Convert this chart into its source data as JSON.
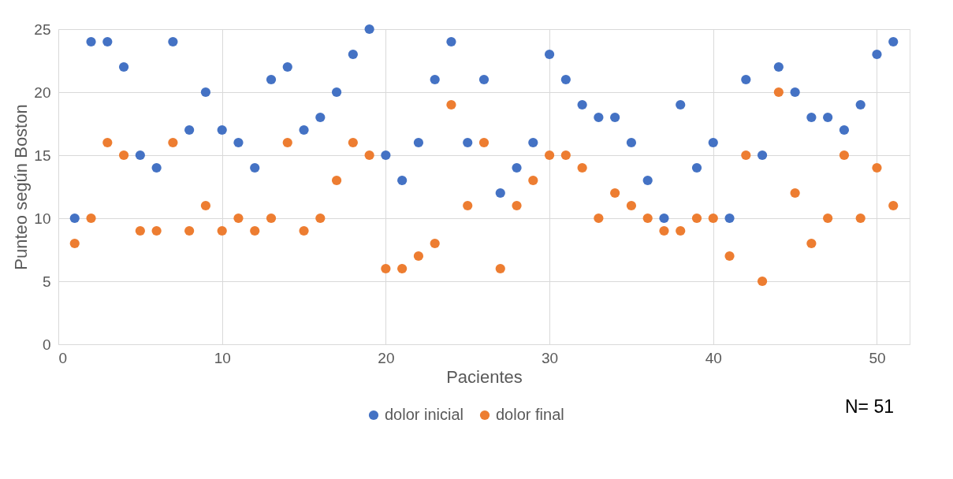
{
  "chart_data": {
    "type": "scatter",
    "xlabel": "Pacientes",
    "ylabel": "Punteo según Boston",
    "x": [
      1,
      2,
      3,
      4,
      5,
      6,
      7,
      8,
      9,
      10,
      11,
      12,
      13,
      14,
      15,
      16,
      17,
      18,
      19,
      20,
      21,
      22,
      23,
      24,
      25,
      26,
      27,
      28,
      29,
      30,
      31,
      32,
      33,
      34,
      35,
      36,
      37,
      38,
      39,
      40,
      41,
      42,
      43,
      44,
      45,
      46,
      47,
      48,
      49,
      50,
      51
    ],
    "series": [
      {
        "name": "dolor inicial",
        "color": "#4472c4",
        "values": [
          10,
          24,
          24,
          22,
          15,
          14,
          24,
          17,
          20,
          17,
          16,
          14,
          21,
          22,
          17,
          18,
          20,
          23,
          25,
          15,
          13,
          16,
          21,
          24,
          16,
          21,
          12,
          14,
          16,
          23,
          21,
          19,
          18,
          18,
          16,
          13,
          10,
          19,
          14,
          16,
          10,
          21,
          15,
          22,
          20,
          18,
          18,
          17,
          19,
          23,
          24
        ]
      },
      {
        "name": "dolor final",
        "color": "#ed7d31",
        "values": [
          8,
          10,
          16,
          15,
          9,
          9,
          16,
          9,
          11,
          9,
          10,
          9,
          10,
          16,
          9,
          10,
          13,
          16,
          15,
          6,
          6,
          7,
          8,
          19,
          11,
          16,
          6,
          11,
          13,
          15,
          15,
          14,
          10,
          12,
          11,
          10,
          9,
          9,
          10,
          10,
          7,
          15,
          5,
          20,
          12,
          8,
          10,
          15,
          10,
          14,
          11
        ]
      }
    ],
    "xlim": [
      0,
      52
    ],
    "xticks": [
      0,
      10,
      20,
      30,
      40,
      50
    ],
    "ylim": [
      0,
      25
    ],
    "yticks": [
      0,
      5,
      10,
      15,
      20,
      25
    ],
    "grid": true,
    "legend": "bottom",
    "marker": "circle",
    "annotations": [
      "N= 51"
    ]
  }
}
